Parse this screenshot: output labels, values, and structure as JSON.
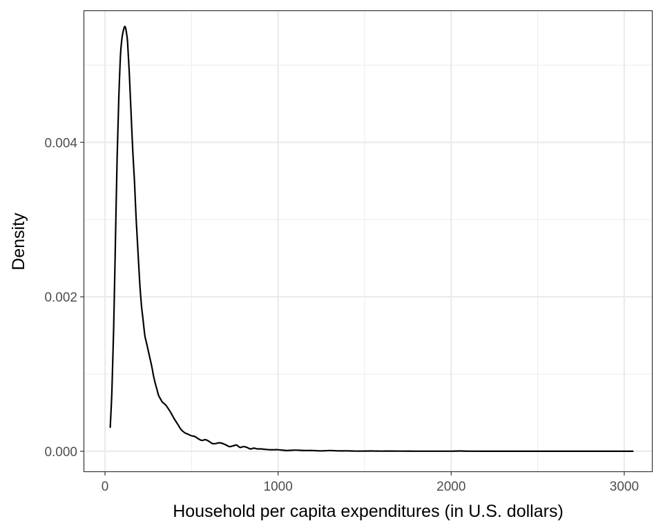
{
  "chart_data": {
    "type": "line",
    "title": "",
    "xlabel": "Household per capita expenditures (in U.S. dollars)",
    "ylabel": "Density",
    "xlim": [
      -120,
      3160
    ],
    "ylim": [
      -0.00026,
      0.0057
    ],
    "x_ticks": [
      0,
      1000,
      2000,
      3000
    ],
    "x_tick_labels": [
      "0",
      "1000",
      "2000",
      "3000"
    ],
    "x_minor_ticks": [
      500,
      1500,
      2500
    ],
    "y_ticks": [
      0,
      0.002,
      0.004
    ],
    "y_tick_labels": [
      "0.000",
      "0.002",
      "0.004"
    ],
    "y_minor_ticks": [
      0.001,
      0.003,
      0.005
    ],
    "grid": true,
    "legend": "none",
    "line_color": "#000000",
    "series": [
      {
        "x": [
          30,
          40,
          50,
          60,
          70,
          80,
          90,
          100,
          110,
          115,
          120,
          125,
          130,
          140,
          150,
          160,
          170,
          180,
          190,
          200,
          210,
          220,
          230,
          240,
          250,
          260,
          270,
          280,
          290,
          300,
          310,
          320,
          330,
          340,
          350,
          360,
          380,
          400,
          420,
          440,
          460,
          480,
          500,
          520,
          540,
          560,
          580,
          600,
          620,
          640,
          660,
          680,
          700,
          720,
          740,
          760,
          780,
          800,
          820,
          840,
          860,
          880,
          900,
          950,
          1000,
          1050,
          1100,
          1150,
          1200,
          1250,
          1300,
          1350,
          1400,
          1450,
          1500,
          1550,
          1600,
          1650,
          1700,
          1800,
          1900,
          2000,
          2050,
          2100,
          2200,
          2400,
          2600,
          2800,
          3050
        ],
        "y": [
          0.00031,
          0.0008,
          0.0016,
          0.0027,
          0.0038,
          0.0046,
          0.00515,
          0.00538,
          0.00548,
          0.0055,
          0.00547,
          0.0054,
          0.0053,
          0.0049,
          0.0044,
          0.0039,
          0.0035,
          0.003,
          0.0026,
          0.0022,
          0.0019,
          0.0017,
          0.0015,
          0.0014,
          0.0013,
          0.0012,
          0.0011,
          0.00098,
          0.00088,
          0.0008,
          0.00072,
          0.00068,
          0.00064,
          0.00062,
          0.0006,
          0.00057,
          0.0005,
          0.00042,
          0.00035,
          0.00028,
          0.00024,
          0.00022,
          0.0002,
          0.00019,
          0.00016,
          0.00014,
          0.00015,
          0.00013,
          0.0001,
          0.0001,
          0.00011,
          0.0001,
          8e-05,
          6e-05,
          7e-05,
          8e-05,
          5e-05,
          6e-05,
          5e-05,
          3e-05,
          4e-05,
          3e-05,
          3e-05,
          2e-05,
          2e-05,
          1e-05,
          1.5e-05,
          1e-05,
          1e-05,
          5e-06,
          1e-05,
          5e-06,
          5e-06,
          2e-06,
          3e-06,
          4e-06,
          2e-06,
          3e-06,
          2e-06,
          1e-06,
          1e-06,
          1e-06,
          4e-06,
          1e-06,
          0.0,
          0.0,
          0.0,
          0.0,
          0.0
        ]
      }
    ]
  }
}
